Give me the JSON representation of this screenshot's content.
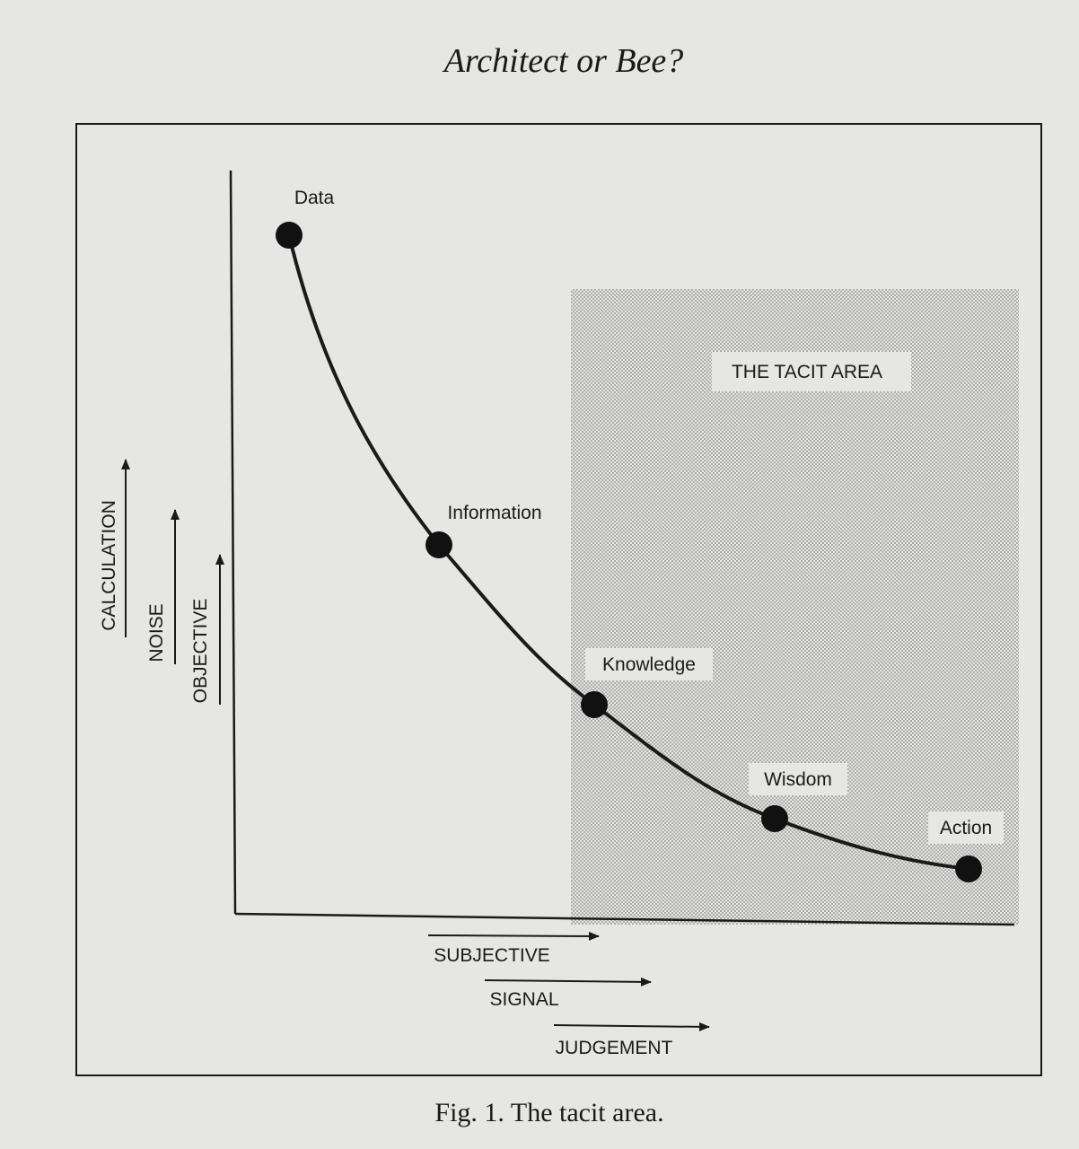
{
  "header": {
    "title": "Architect or Bee?"
  },
  "figure": {
    "tacit_area_label": "THE TACIT AREA",
    "nodes": [
      {
        "label": "Data"
      },
      {
        "label": "Information"
      },
      {
        "label": "Knowledge"
      },
      {
        "label": "Wisdom"
      },
      {
        "label": "Action"
      }
    ],
    "y_axis_labels": [
      "CALCULATION",
      "NOISE",
      "OBJECTIVE"
    ],
    "x_axis_labels": [
      "SUBJECTIVE",
      "SIGNAL",
      "JUDGEMENT"
    ]
  },
  "caption": "Fig. 1. The tacit area."
}
